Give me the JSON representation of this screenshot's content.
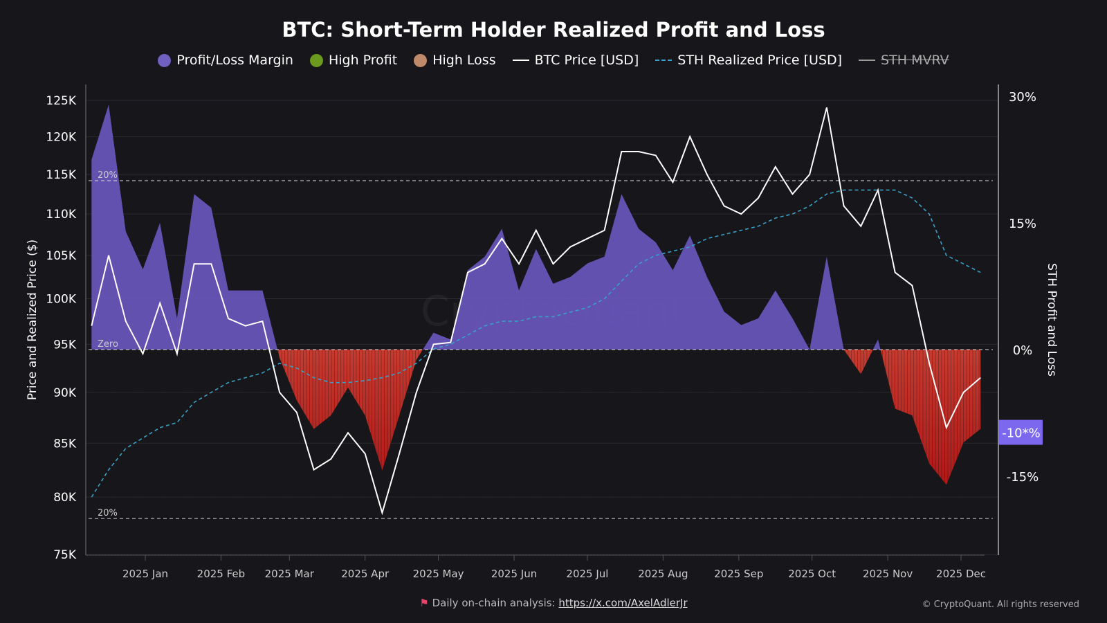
{
  "chart_data": {
    "type": "line",
    "title": "BTC: Short-Term Holder Realized Profit and Loss",
    "legend": [
      {
        "name": "Profit/Loss Margin",
        "color": "#7060c0",
        "marker": "dot"
      },
      {
        "name": "High Profit",
        "color": "#6b9a1e",
        "marker": "dot"
      },
      {
        "name": "High Loss",
        "color": "#c08a6a",
        "marker": "dot"
      },
      {
        "name": "BTC Price [USD]",
        "color": "#ffffff",
        "marker": "line"
      },
      {
        "name": "STH Realized Price [USD]",
        "color": "#3aa0c8",
        "marker": "dashed"
      },
      {
        "name": "STH MVRV",
        "color": "#999999",
        "marker": "line",
        "hidden": true
      }
    ],
    "legend_placement": "top",
    "ylabel": "Price and Realized Price ($)",
    "y2label": "STH Profit and Loss",
    "yscale": "log",
    "ylim": [
      75000,
      125000
    ],
    "y2lim": [
      -24,
      32
    ],
    "yticks": [
      "75K",
      "80K",
      "85K",
      "90K",
      "95K",
      "100K",
      "105K",
      "110K",
      "115K",
      "120K",
      "125K"
    ],
    "ytick_values": [
      75000,
      80000,
      85000,
      90000,
      95000,
      100000,
      105000,
      110000,
      115000,
      120000,
      125000
    ],
    "y2ticks": [
      "-15%",
      "0%",
      "15%",
      "30%"
    ],
    "y2tick_values": [
      -15,
      0,
      15,
      30
    ],
    "xticks": [
      "2025 Jan",
      "2025 Feb",
      "2025 Mar",
      "2025 Apr",
      "2025 May",
      "2025 Jun",
      "2025 Jul",
      "2025 Aug",
      "2025 Sep",
      "2025 Oct",
      "2025 Nov",
      "2025 Dec"
    ],
    "xtick_dates": [
      "2025-01-01",
      "2025-02-01",
      "2025-03-01",
      "2025-04-01",
      "2025-05-01",
      "2025-06-01",
      "2025-07-01",
      "2025-08-01",
      "2025-09-01",
      "2025-10-01",
      "2025-11-01",
      "2025-12-01"
    ],
    "reference_lines": [
      {
        "value": 20,
        "label": "20%"
      },
      {
        "value": 0,
        "label": "Zero"
      },
      {
        "value": -20,
        "label": "20%"
      }
    ],
    "current_badge": {
      "label": "-10*%",
      "value": -9.8,
      "color": "#7b68ee"
    },
    "grid": true,
    "x": [
      "2024-12-10",
      "2024-12-17",
      "2024-12-24",
      "2024-12-31",
      "2025-01-07",
      "2025-01-14",
      "2025-01-21",
      "2025-01-28",
      "2025-02-04",
      "2025-02-11",
      "2025-02-18",
      "2025-02-25",
      "2025-03-04",
      "2025-03-11",
      "2025-03-18",
      "2025-03-25",
      "2025-04-01",
      "2025-04-08",
      "2025-04-15",
      "2025-04-22",
      "2025-04-29",
      "2025-05-06",
      "2025-05-13",
      "2025-05-20",
      "2025-05-27",
      "2025-06-03",
      "2025-06-10",
      "2025-06-17",
      "2025-06-24",
      "2025-07-01",
      "2025-07-08",
      "2025-07-15",
      "2025-07-22",
      "2025-07-29",
      "2025-08-05",
      "2025-08-12",
      "2025-08-19",
      "2025-08-26",
      "2025-09-02",
      "2025-09-09",
      "2025-09-16",
      "2025-09-23",
      "2025-09-30",
      "2025-10-07",
      "2025-10-14",
      "2025-10-21",
      "2025-10-28",
      "2025-11-04",
      "2025-11-11",
      "2025-11-18",
      "2025-11-25",
      "2025-12-02",
      "2025-12-09"
    ],
    "series": [
      {
        "name": "BTC Price [USD]",
        "axis": "left",
        "values": [
          97000,
          105000,
          97500,
          94000,
          99500,
          94000,
          104000,
          104000,
          97800,
          97000,
          97500,
          90000,
          88000,
          82500,
          83500,
          86000,
          84000,
          78600,
          84000,
          90000,
          95000,
          95200,
          103000,
          104000,
          107000,
          104000,
          108000,
          104000,
          106000,
          107000,
          108000,
          118000,
          118000,
          117500,
          114000,
          120000,
          115000,
          111000,
          110000,
          112000,
          116000,
          112500,
          115000,
          124000,
          111000,
          108500,
          113000,
          103000,
          101500,
          93000,
          86500,
          90000,
          91500
        ]
      },
      {
        "name": "STH Realized Price [USD]",
        "axis": "left",
        "values": [
          80000,
          82500,
          84500,
          85500,
          86500,
          87000,
          89000,
          90000,
          91000,
          91500,
          92000,
          93000,
          92500,
          91500,
          91000,
          91000,
          91200,
          91500,
          92000,
          93000,
          94500,
          95000,
          96000,
          97000,
          97500,
          97500,
          98000,
          98000,
          98500,
          99000,
          100000,
          102000,
          104000,
          105000,
          105500,
          106000,
          107000,
          107500,
          108000,
          108500,
          109500,
          110000,
          111000,
          112500,
          113000,
          113000,
          113000,
          113000,
          112000,
          110000,
          105000,
          104000,
          103000
        ]
      },
      {
        "name": "Profit/Loss Margin",
        "axis": "right",
        "unit": "%",
        "values": [
          22.5,
          29,
          14,
          9.5,
          15,
          3.7,
          18.4,
          16.8,
          7,
          7,
          7,
          -1,
          -6,
          -9.4,
          -7.8,
          -4.5,
          -7.8,
          -14.3,
          -7.8,
          -1.2,
          2,
          1.2,
          9.4,
          11,
          14.3,
          7,
          11.9,
          7.8,
          8.6,
          10.2,
          11,
          18.4,
          14.3,
          12.7,
          9.4,
          13.5,
          8.6,
          4.5,
          2.9,
          3.7,
          7,
          3.7,
          0,
          11,
          0,
          -2.9,
          1.2,
          -7,
          -7.8,
          -13.5,
          -16,
          -11,
          -9.4
        ]
      }
    ]
  },
  "footer": {
    "text": "Daily on-chain analysis: ",
    "link": "https://x.com/AxelAdlerJr",
    "copyright": "© CryptoQuant. All rights reserved"
  }
}
